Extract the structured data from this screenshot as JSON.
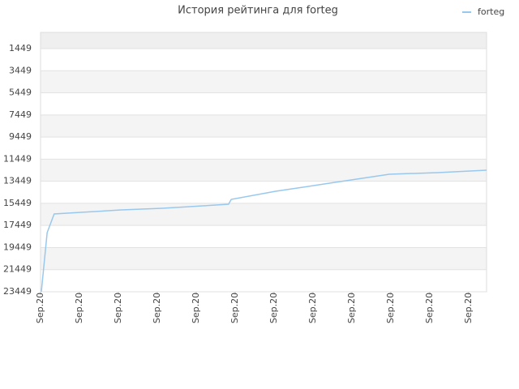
{
  "chart_data": {
    "type": "line",
    "title": "История рейтинга для forteg",
    "x": [
      0.02,
      0.17,
      0.35,
      1.04,
      2.08,
      3.13,
      4.17,
      4.83,
      4.9,
      6.04,
      7.29,
      8.96,
      10.21,
      11.46
    ],
    "series": [
      {
        "name": "forteg",
        "color": "#99c8ee",
        "values": [
          23449,
          18097,
          16410,
          16263,
          16043,
          15897,
          15677,
          15530,
          15090,
          14357,
          13697,
          12816,
          12670,
          12449
        ]
      }
    ],
    "xlim": [
      0,
      11.46
    ],
    "xticks": [
      {
        "value": 0,
        "label": "Sep.20"
      },
      {
        "value": 1,
        "label": "Sep.20"
      },
      {
        "value": 2,
        "label": "Sep.20"
      },
      {
        "value": 3,
        "label": "Sep.20"
      },
      {
        "value": 4,
        "label": "Sep.20"
      },
      {
        "value": 5,
        "label": "Sep.20"
      },
      {
        "value": 6,
        "label": "Sep.20"
      },
      {
        "value": 7,
        "label": "Sep.20"
      },
      {
        "value": 8,
        "label": "Sep.20"
      },
      {
        "value": 9,
        "label": "Sep.20"
      },
      {
        "value": 10,
        "label": "Sep.20"
      },
      {
        "value": 11,
        "label": "Sep.20"
      }
    ],
    "ylim": [
      23449,
      -18
    ],
    "yticks": [
      1449,
      3449,
      5449,
      7449,
      9449,
      11449,
      13449,
      15449,
      17449,
      19449,
      21449,
      23449
    ],
    "grid": true,
    "legend": "top-right"
  }
}
